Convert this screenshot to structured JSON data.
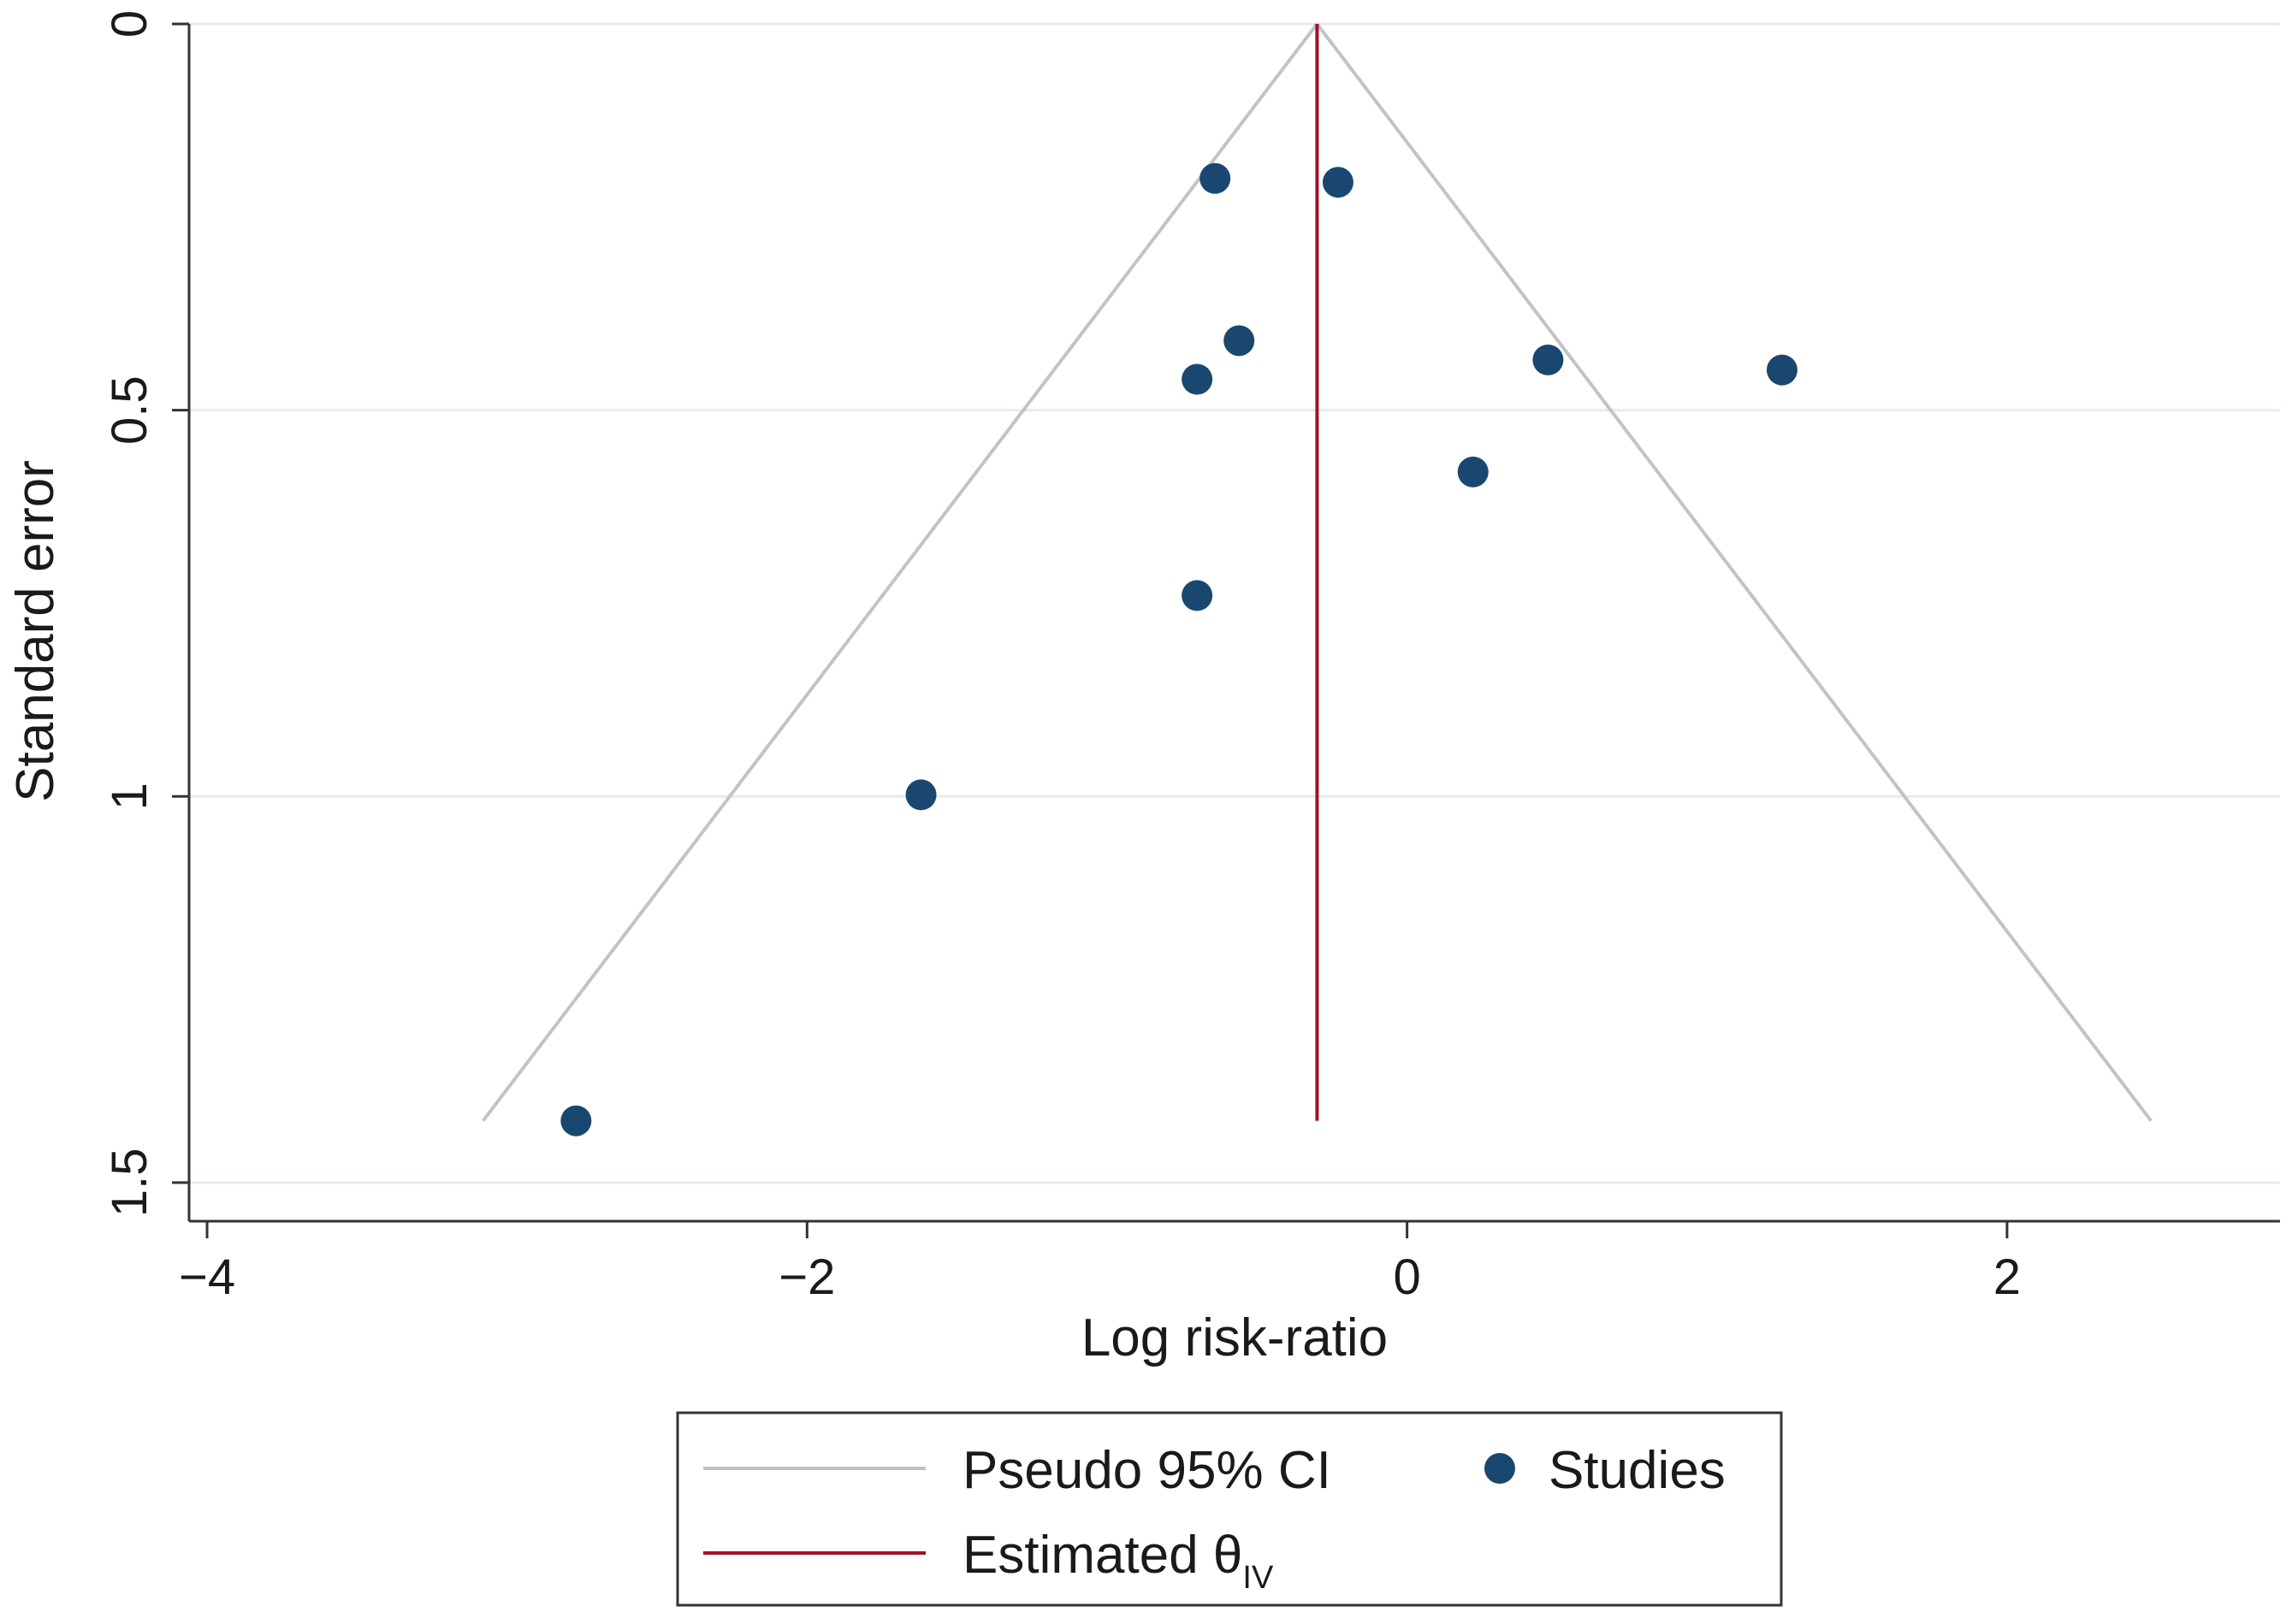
{
  "chart_data": {
    "type": "scatter",
    "subtype": "funnel-plot",
    "title": "",
    "xlabel": "Log risk-ratio",
    "ylabel": "Standard error",
    "xlim": [
      -4.06,
      2.91
    ],
    "ylim": [
      0,
      1.55
    ],
    "y_reversed": true,
    "x_ticks": [
      -4,
      -2,
      0,
      2
    ],
    "x_tick_labels": [
      "−4",
      "−2",
      "0",
      "2"
    ],
    "y_ticks": [
      0,
      0.5,
      1,
      1.5
    ],
    "y_tick_labels": [
      "0",
      "0.5",
      "1",
      "1.5"
    ],
    "grid": "horizontal",
    "estimate": -0.3,
    "estimate_se_range": [
      0,
      1.42
    ],
    "ci_funnel": {
      "apex": [
        -0.3,
        0
      ],
      "left_base": [
        -3.08,
        1.42
      ],
      "right_base": [
        2.48,
        1.42
      ]
    },
    "series": [
      {
        "name": "Studies",
        "points": [
          {
            "x": -0.64,
            "y": 0.2
          },
          {
            "x": -0.23,
            "y": 0.205
          },
          {
            "x": -0.56,
            "y": 0.41
          },
          {
            "x": -0.7,
            "y": 0.46
          },
          {
            "x": 0.47,
            "y": 0.435
          },
          {
            "x": 1.25,
            "y": 0.448
          },
          {
            "x": 0.22,
            "y": 0.58
          },
          {
            "x": -0.7,
            "y": 0.74
          },
          {
            "x": -1.62,
            "y": 0.998
          },
          {
            "x": -2.77,
            "y": 1.42
          }
        ]
      }
    ],
    "legend": {
      "position": "bottom-center",
      "entries": [
        {
          "label": "Pseudo 95% CI",
          "symbol": "line",
          "color": "#c0c0c0"
        },
        {
          "label": "Studies",
          "symbol": "dot",
          "color": "#1a476f"
        },
        {
          "label": "Estimated θ",
          "subscript": "IV",
          "symbol": "line",
          "color": "#a0112a"
        }
      ]
    },
    "colors": {
      "points": "#1a476f",
      "estimate_line": "#a0112a",
      "funnel_line": "#c3c3c3",
      "grid": "#e4ecf0",
      "axis": "#333333"
    }
  }
}
